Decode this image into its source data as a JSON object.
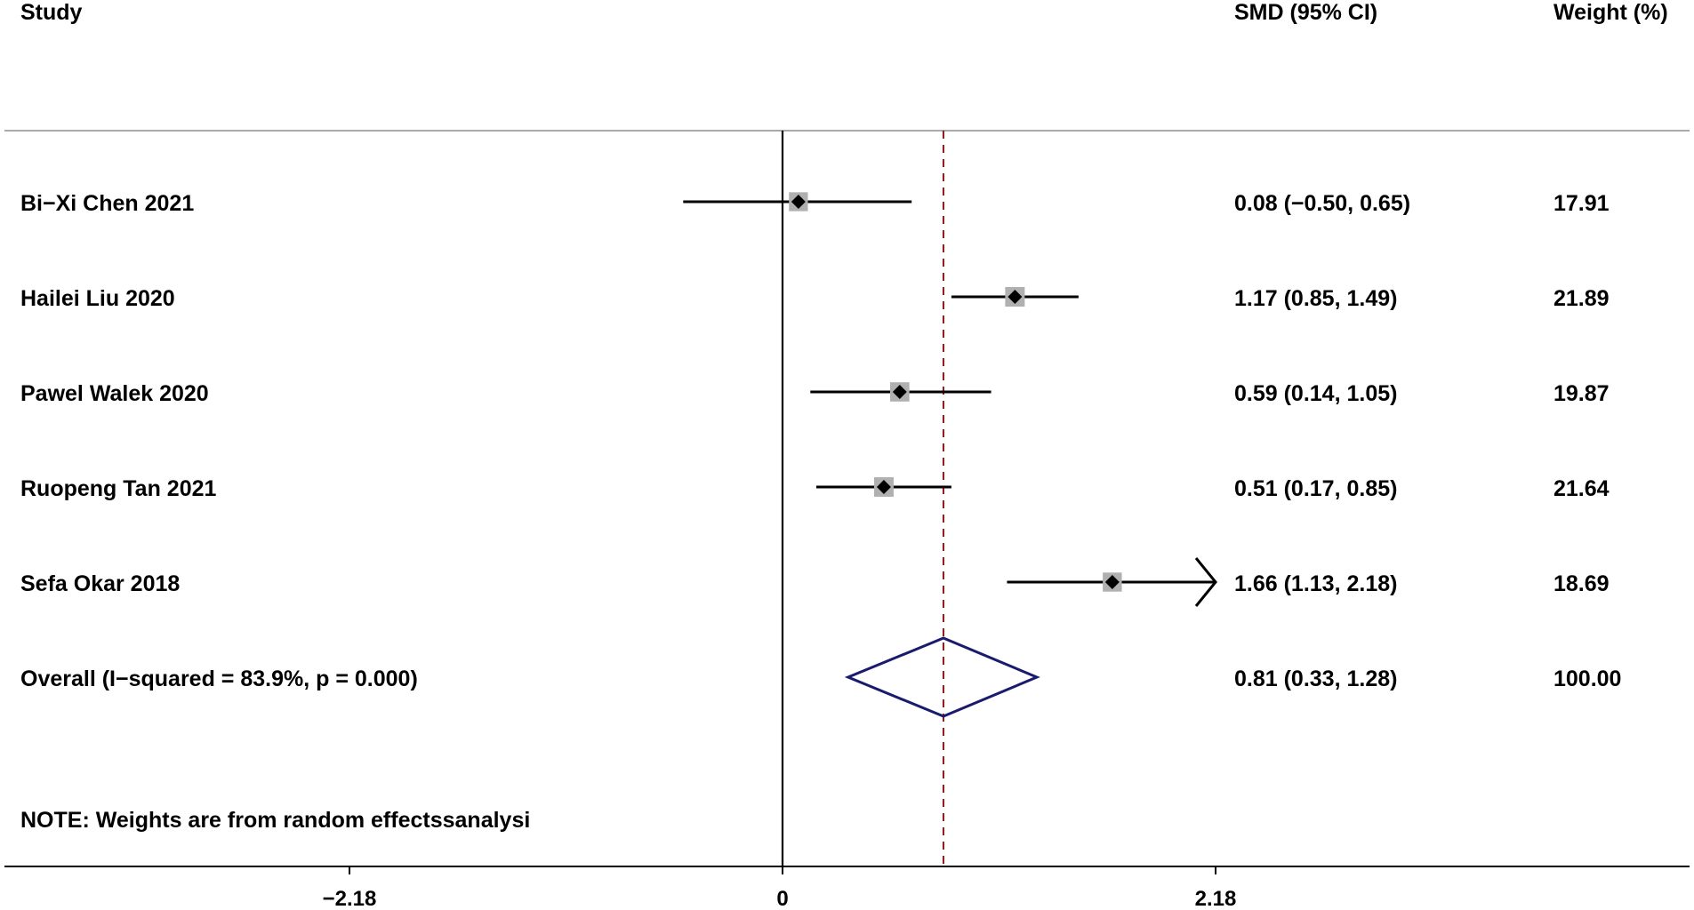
{
  "chart_data": {
    "type": "forest",
    "headers": {
      "study": "Study",
      "effect": "SMD (95% CI)",
      "weight": "Weight (%)"
    },
    "studies": [
      {
        "label": "Bi−Xi Chen 2021",
        "smd": 0.08,
        "lower": -0.5,
        "upper": 0.65,
        "ci_text": "0.08 (−0.50, 0.65)",
        "weight": "17.91"
      },
      {
        "label": "Hailei Liu 2020",
        "smd": 1.17,
        "lower": 0.85,
        "upper": 1.49,
        "ci_text": "1.17 (0.85, 1.49)",
        "weight": "21.89"
      },
      {
        "label": "Pawel Walek 2020",
        "smd": 0.59,
        "lower": 0.14,
        "upper": 1.05,
        "ci_text": "0.59 (0.14, 1.05)",
        "weight": "19.87"
      },
      {
        "label": "Ruopeng Tan 2021",
        "smd": 0.51,
        "lower": 0.17,
        "upper": 0.85,
        "ci_text": "0.51 (0.17, 0.85)",
        "weight": "21.64"
      },
      {
        "label": "Sefa Okar 2018",
        "smd": 1.66,
        "lower": 1.13,
        "upper": 2.18,
        "ci_text": "1.66 (1.13, 2.18)",
        "weight": "18.69",
        "arrow_right": true
      }
    ],
    "overall": {
      "label": "Overall  (I−squared = 83.9%, p = 0.000)",
      "smd": 0.81,
      "lower": 0.33,
      "upper": 1.28,
      "ci_text": "0.81 (0.33, 1.28)",
      "weight": "100.00"
    },
    "note": "NOTE: Weights are from random effectssanalysi",
    "x_ticks": [
      {
        "value": -2.18,
        "label": "−2.18"
      },
      {
        "value": 0,
        "label": "0"
      },
      {
        "value": 2.18,
        "label": "2.18"
      }
    ],
    "xlim": [
      -4.0,
      4.6
    ],
    "null_line": 0,
    "colors": {
      "overall_diamond": "#1a1a6e",
      "pooled_line": "#8b1a1a",
      "weight_box": "#b0b0b0",
      "header_rule": "#aaaaaa"
    }
  }
}
